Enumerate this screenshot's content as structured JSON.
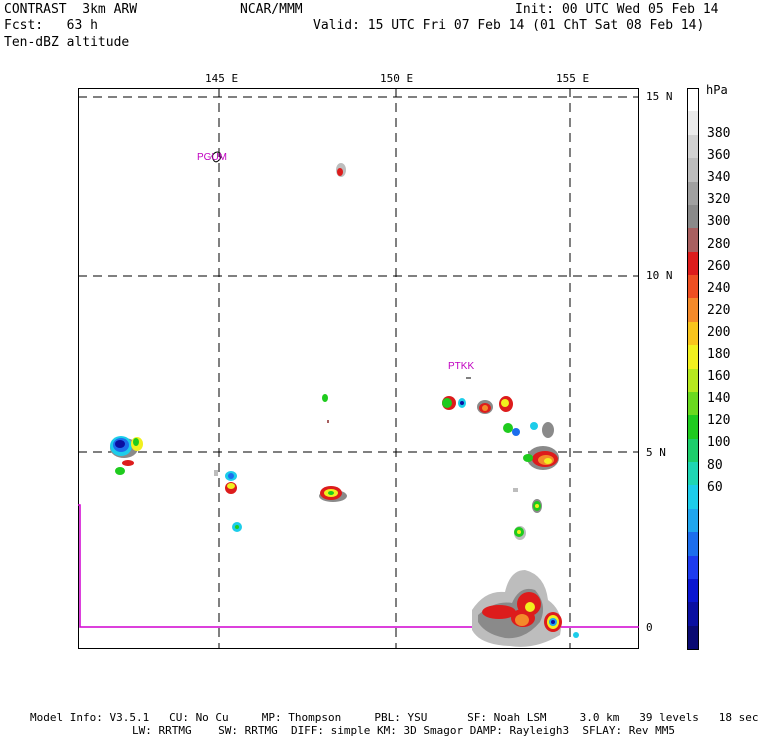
{
  "header": {
    "model": "CONTRAST  3km ARW",
    "forecast": "Fcst:   63 h",
    "field": "Ten-dBZ altitude",
    "center": "NCAR/MMM",
    "init": "Init: 00 UTC Wed 05 Feb 14",
    "valid": "Valid: 15 UTC Fri 07 Feb 14 (01 ChT Sat 08 Feb 14)"
  },
  "map": {
    "lon_labels": [
      "145 E",
      "150 E",
      "155 E"
    ],
    "lat_labels": [
      "15 N",
      "10 N",
      "5 N",
      "0"
    ],
    "stations": [
      {
        "id": "PGUM",
        "lon": 144.8,
        "lat": 13.5
      },
      {
        "id": "PTKK",
        "lon": 151.8,
        "lat": 7.4
      }
    ],
    "extent": {
      "lon_min": 141.0,
      "lon_max": 156.8,
      "lat_min": -0.6,
      "lat_max": 15.2
    }
  },
  "colorbar": {
    "unit": "hPa",
    "levels": [
      "380",
      "360",
      "340",
      "320",
      "300",
      "280",
      "260",
      "240",
      "220",
      "200",
      "180",
      "160",
      "140",
      "120",
      "100",
      "80",
      "60"
    ],
    "colors": [
      "#ffffff",
      "#ebebeb",
      "#d2d2d2",
      "#bdbdbd",
      "#a0a0a0",
      "#8a8a8a",
      "#a86060",
      "#dd1c1c",
      "#ee4f22",
      "#f48a2a",
      "#f8c41c",
      "#f1f01e",
      "#b6e81e",
      "#6ad91e",
      "#1fcb1e",
      "#1cce6b",
      "#1ed6b3",
      "#1ccdea",
      "#1fa6ee",
      "#1c6eed",
      "#1d3bee",
      "#0a16d1",
      "#0a0fa1",
      "#0a0a72"
    ]
  },
  "footer": {
    "line1": "Model Info: V3.5.1   CU: No Cu     MP: Thompson     PBL: YSU      SF: Noah LSM     3.0 km   39 levels   18 sec",
    "line2": "LW: RRTMG    SW: RRTMG  DIFF: simple KM: 3D Smagor DAMP: Rayleigh3  SFLAY: Rev MM5"
  }
}
